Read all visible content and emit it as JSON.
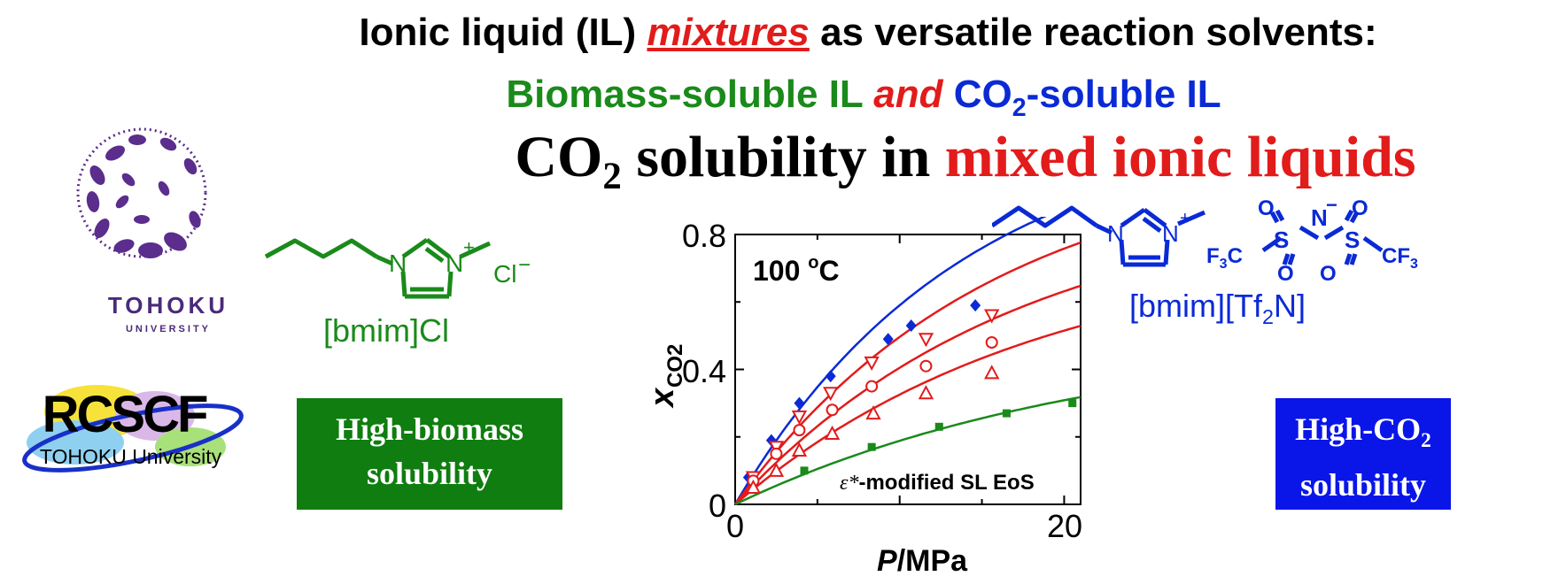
{
  "title_line1": {
    "part1": "Ionic liquid (IL) ",
    "emph": "mixtures",
    "part2": " as versatile reaction solvents:"
  },
  "title_line2": {
    "green": "Biomass-soluble IL ",
    "red": "and",
    "blue_a": " CO",
    "blue_sub": "2",
    "blue_b": "-soluble IL"
  },
  "title_line3": {
    "black_a": "CO",
    "black_sub": "2",
    "black_b": " solubility in ",
    "red": "mixed ionic liquids"
  },
  "logos": {
    "tohoku_name": "TOHOKU",
    "tohoku_sub": "UNIVERSITY",
    "rcscf_name": "RCSCF",
    "rcscf_sub": "TOHOKU University"
  },
  "left_molecule": {
    "atom_n1": "N",
    "atom_n2": "N",
    "charge": "+",
    "anion": "Cl",
    "anion_charge": "−",
    "name": "[bmim]Cl"
  },
  "right_molecule": {
    "atom_n1": "N",
    "atom_n2": "N",
    "charge": "+",
    "o": "O",
    "n_minus": "N",
    "minus": "−",
    "s": "S",
    "f3c": "F",
    "three": "3",
    "c": "C",
    "cf3": "CF",
    "name_a": "[bmim][Tf",
    "name_sub": "2",
    "name_b": "N]"
  },
  "boxes": {
    "green_line1": "High-biomass",
    "green_line2": "solubility",
    "blue_line1a": "High-CO",
    "blue_line1_sub": "2",
    "blue_line2": "solubility"
  },
  "colors": {
    "green": "#1a8a1a",
    "blue": "#0a2ad6",
    "red": "#e21b1b",
    "purple": "#5b2d8c"
  },
  "chart_data": {
    "type": "scatter",
    "xlabel_italic": "P",
    "xlabel_rest": "/MPa",
    "ylabel_main": "x",
    "ylabel_sub": "CO2",
    "xlim": [
      0,
      21
    ],
    "ylim": [
      0,
      0.8
    ],
    "xticks": [
      "0",
      "20"
    ],
    "yticks": [
      "0",
      "0.4",
      "0.8"
    ],
    "annotation_temp": "100 ",
    "annotation_temp_sup": "o",
    "annotation_temp_unit": "C",
    "annotation_model_eps": "ε*",
    "annotation_model": "-modified SL EoS",
    "series": [
      {
        "color": "#0a2ad6",
        "marker": "diamond",
        "points": [
          [
            0.8,
            0.08
          ],
          [
            2.2,
            0.19
          ],
          [
            3.9,
            0.3
          ],
          [
            5.8,
            0.38
          ],
          [
            9.3,
            0.49
          ],
          [
            10.7,
            0.53
          ],
          [
            14.6,
            0.59
          ]
        ],
        "curve_a": 1.15,
        "curve_b": 0.072
      },
      {
        "color": "#e21b1b",
        "marker": "triangle-down",
        "points": [
          [
            1.1,
            0.08
          ],
          [
            2.5,
            0.17
          ],
          [
            3.9,
            0.26
          ],
          [
            5.8,
            0.33
          ],
          [
            8.3,
            0.42
          ],
          [
            11.6,
            0.49
          ],
          [
            15.6,
            0.56
          ]
        ],
        "curve_a": 1.05,
        "curve_b": 0.064
      },
      {
        "color": "#e21b1b",
        "marker": "circle",
        "points": [
          [
            1.1,
            0.07
          ],
          [
            2.5,
            0.15
          ],
          [
            3.9,
            0.22
          ],
          [
            5.9,
            0.28
          ],
          [
            8.3,
            0.35
          ],
          [
            11.6,
            0.41
          ],
          [
            15.6,
            0.48
          ]
        ],
        "curve_a": 0.92,
        "curve_b": 0.058
      },
      {
        "color": "#e21b1b",
        "marker": "triangle-up",
        "points": [
          [
            1.1,
            0.05
          ],
          [
            2.5,
            0.1
          ],
          [
            3.9,
            0.16
          ],
          [
            5.9,
            0.21
          ],
          [
            8.4,
            0.27
          ],
          [
            11.6,
            0.33
          ],
          [
            15.6,
            0.39
          ]
        ],
        "curve_a": 0.78,
        "curve_b": 0.054
      },
      {
        "color": "#1a8a1a",
        "marker": "square",
        "points": [
          [
            4.2,
            0.1
          ],
          [
            8.3,
            0.17
          ],
          [
            12.4,
            0.23
          ],
          [
            16.5,
            0.27
          ],
          [
            20.5,
            0.3
          ]
        ],
        "curve_a": 0.52,
        "curve_b": 0.045
      }
    ]
  }
}
